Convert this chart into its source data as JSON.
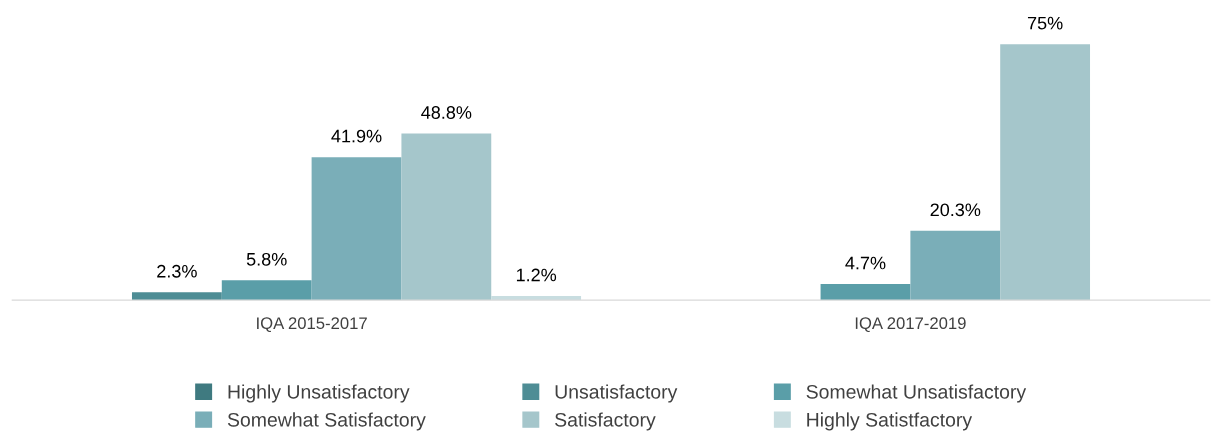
{
  "chart_data": {
    "type": "bar",
    "categories": [
      "IQA 2015-2017",
      "IQA 2017-2019"
    ],
    "series": [
      {
        "name": "Highly Unsatisfactory",
        "color": "#3f7a80",
        "values": [
          null,
          null
        ]
      },
      {
        "name": "Unsatisfactory",
        "color": "#4e8d95",
        "values": [
          2.3,
          null
        ],
        "value_labels": [
          "2.3%",
          null
        ]
      },
      {
        "name": "Somewhat Unsatisfactory",
        "color": "#5a9ea8",
        "values": [
          5.8,
          4.7
        ],
        "value_labels": [
          "5.8%",
          "4.7%"
        ]
      },
      {
        "name": "Somewhat Satisfactory",
        "color": "#7aaeb8",
        "values": [
          41.9,
          20.3
        ],
        "value_labels": [
          "41.9%",
          "20.3%"
        ]
      },
      {
        "name": "Satisfactory",
        "color": "#a5c6cb",
        "values": [
          48.8,
          75
        ],
        "value_labels": [
          "48.8%",
          "75%"
        ]
      },
      {
        "name": "Highly Satistfactory",
        "color": "#c8dde0",
        "values": [
          1.2,
          null
        ],
        "value_labels": [
          "1.2%",
          null
        ]
      }
    ],
    "legend": "bottom",
    "grid": false
  }
}
